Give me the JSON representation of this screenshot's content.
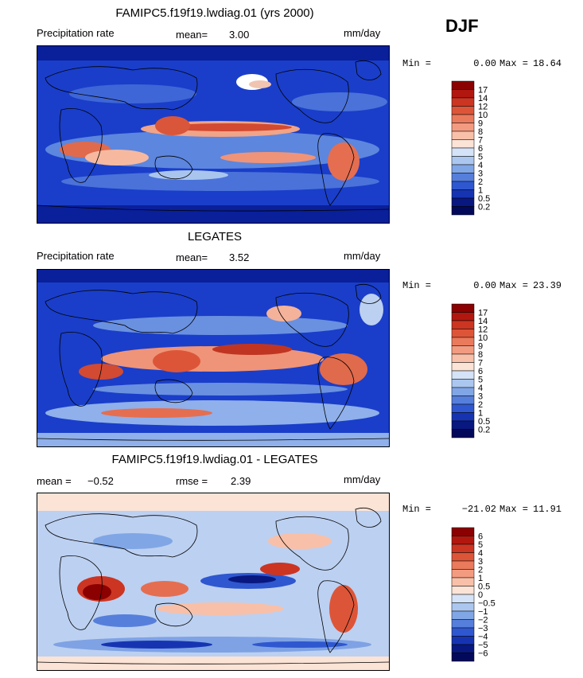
{
  "season": "DJF",
  "panels": [
    {
      "title": "FAMIPC5.f19f19.lwdiag.01 (yrs 2000)",
      "left_label": "Precipitation rate",
      "stat1_label": "mean=",
      "stat1_value": "3.00",
      "stat2_label": "",
      "stat2_value": "",
      "units": "mm/day",
      "min_label": "Min =",
      "min_value": "0.00",
      "max_label": "Max =",
      "max_value": "18.64",
      "colorbar_labels": [
        "17",
        "14",
        "12",
        "10",
        "9",
        "8",
        "7",
        "6",
        "5",
        "4",
        "3",
        "2",
        "1",
        "0.5",
        "0.2"
      ],
      "colorbar_colors": [
        "#8b0000",
        "#b2170f",
        "#cc3522",
        "#dd5538",
        "#ea7a5c",
        "#f39b81",
        "#f8c0a8",
        "#fbe3d6",
        "#d4e3f7",
        "#abc7ef",
        "#80a6e6",
        "#567fdb",
        "#2f57cf",
        "#1634b2",
        "#081880",
        "#03095a"
      ]
    },
    {
      "title": "LEGATES",
      "left_label": "Precipitation rate",
      "stat1_label": "mean=",
      "stat1_value": "3.52",
      "stat2_label": "",
      "stat2_value": "",
      "units": "mm/day",
      "min_label": "Min =",
      "min_value": "0.00",
      "max_label": "Max =",
      "max_value": "23.39",
      "colorbar_labels": [
        "17",
        "14",
        "12",
        "10",
        "9",
        "8",
        "7",
        "6",
        "5",
        "4",
        "3",
        "2",
        "1",
        "0.5",
        "0.2"
      ],
      "colorbar_colors": [
        "#8b0000",
        "#b2170f",
        "#cc3522",
        "#dd5538",
        "#ea7a5c",
        "#f39b81",
        "#f8c0a8",
        "#fbe3d6",
        "#d4e3f7",
        "#abc7ef",
        "#80a6e6",
        "#567fdb",
        "#2f57cf",
        "#1634b2",
        "#081880",
        "#03095a"
      ]
    },
    {
      "title": "FAMIPC5.f19f19.lwdiag.01 - LEGATES",
      "left_label": "",
      "stat1_label": "mean =",
      "stat1_value": "−0.52",
      "stat2_label": "rmse =",
      "stat2_value": "2.39",
      "units": "mm/day",
      "min_label": "Min =",
      "min_value": "−21.02",
      "max_label": "Max =",
      "max_value": "11.91",
      "colorbar_labels": [
        "6",
        "5",
        "4",
        "3",
        "2",
        "1",
        "0.5",
        "0",
        "−0.5",
        "−1",
        "−2",
        "−3",
        "−4",
        "−5",
        "−6"
      ],
      "colorbar_colors": [
        "#8b0000",
        "#b2170f",
        "#cc3522",
        "#dd5538",
        "#ea7a5c",
        "#f39b81",
        "#f8c0a8",
        "#fbe3d6",
        "#d4e3f7",
        "#abc7ef",
        "#80a6e6",
        "#567fdb",
        "#2f57cf",
        "#1634b2",
        "#081880",
        "#03095a"
      ]
    }
  ]
}
